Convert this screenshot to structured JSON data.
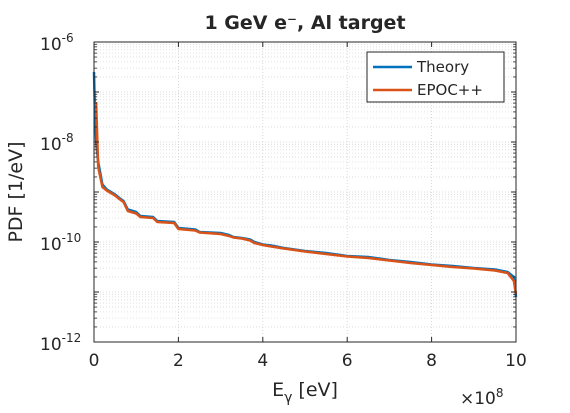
{
  "chart_data": {
    "type": "line",
    "title": "1 GeV e⁻, Al target",
    "xlabel": "E_γ [eV]",
    "ylabel": "PDF [1/eV]",
    "x_scale_factor_label": "×10",
    "x_scale_factor_exponent": "8",
    "x_tick_labels": [
      "0",
      "2",
      "4",
      "6",
      "8",
      "10"
    ],
    "x_ticks": [
      0,
      2,
      4,
      6,
      8,
      10
    ],
    "y_tick_labels": [
      {
        "base": "10",
        "exp": "-12",
        "value": -12
      },
      {
        "base": "10",
        "exp": "-10",
        "value": -10
      },
      {
        "base": "10",
        "exp": "-8",
        "value": -8
      },
      {
        "base": "10",
        "exp": "-6",
        "value": -6
      }
    ],
    "xlim": [
      0,
      10
    ],
    "ylim_log10": [
      -12,
      -6
    ],
    "y_scale": "log",
    "grid": true,
    "legend_position": "top-right",
    "series": [
      {
        "name": "Theory",
        "color": "#0072BD",
        "x": [
          0.0,
          0.02,
          0.05,
          0.1,
          0.2,
          0.3,
          0.5,
          0.6,
          0.7,
          0.8,
          1.0,
          1.1,
          1.4,
          1.5,
          1.9,
          2.0,
          2.4,
          2.5,
          3.0,
          3.2,
          3.3,
          3.5,
          3.7,
          3.8,
          4.0,
          4.2,
          4.5,
          5.0,
          5.5,
          6.0,
          6.5,
          7.0,
          7.5,
          8.0,
          8.5,
          9.0,
          9.5,
          9.8,
          9.95,
          10.0
        ],
        "y_log10": [
          -6.6,
          -7.3,
          -8.0,
          -8.4,
          -8.85,
          -8.95,
          -9.05,
          -9.12,
          -9.18,
          -9.35,
          -9.4,
          -9.48,
          -9.5,
          -9.58,
          -9.6,
          -9.72,
          -9.75,
          -9.8,
          -9.82,
          -9.86,
          -9.9,
          -9.92,
          -9.95,
          -10.0,
          -10.05,
          -10.07,
          -10.12,
          -10.18,
          -10.22,
          -10.28,
          -10.3,
          -10.36,
          -10.4,
          -10.45,
          -10.48,
          -10.52,
          -10.55,
          -10.6,
          -10.7,
          -11.1
        ]
      },
      {
        "name": "EPOC++",
        "color": "#D95319",
        "x": [
          0.05,
          0.08,
          0.1,
          0.2,
          0.3,
          0.5,
          0.6,
          0.7,
          0.8,
          1.0,
          1.1,
          1.4,
          1.5,
          1.9,
          2.0,
          2.4,
          2.5,
          3.0,
          3.2,
          3.3,
          3.5,
          3.7,
          3.8,
          4.0,
          4.2,
          4.5,
          5.0,
          5.5,
          6.0,
          6.5,
          7.0,
          7.5,
          8.0,
          8.5,
          9.0,
          9.5,
          9.8,
          9.95,
          10.0
        ],
        "y_log10": [
          -7.2,
          -8.0,
          -8.5,
          -8.9,
          -8.97,
          -9.07,
          -9.14,
          -9.2,
          -9.38,
          -9.43,
          -9.5,
          -9.52,
          -9.6,
          -9.62,
          -9.74,
          -9.77,
          -9.81,
          -9.84,
          -9.88,
          -9.91,
          -9.93,
          -9.97,
          -10.02,
          -10.06,
          -10.09,
          -10.13,
          -10.19,
          -10.24,
          -10.29,
          -10.32,
          -10.37,
          -10.42,
          -10.46,
          -10.5,
          -10.53,
          -10.57,
          -10.62,
          -10.78,
          -11.05
        ]
      }
    ]
  }
}
